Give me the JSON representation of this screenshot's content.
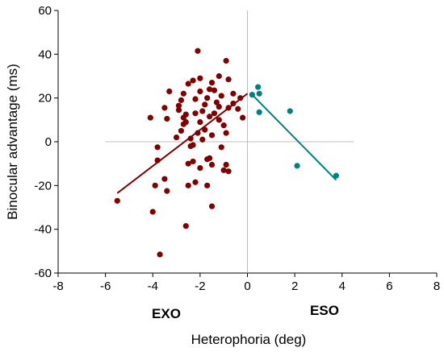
{
  "chart_data": {
    "type": "scatter",
    "title": "",
    "xlabel": "Heterophoria (deg)",
    "ylabel": "Binocular advantage (ms)",
    "xlim": [
      -8,
      8
    ],
    "ylim": [
      -60,
      60
    ],
    "x_ticks": [
      "-8",
      "-6",
      "-4",
      "-2",
      "0",
      "2",
      "4",
      "6",
      "8"
    ],
    "y_ticks": [
      "60",
      "40",
      "20",
      "0",
      "-20",
      "-40",
      "-60"
    ],
    "annotations": {
      "left": "EXO",
      "right": "ESO"
    },
    "colors": {
      "exo": "#800000",
      "eso": "#008080",
      "reference_line": "#bfbfbf"
    },
    "series": [
      {
        "points": [
          [
            -3.7,
            -51.5
          ],
          [
            -2.1,
            41.5
          ],
          [
            -1.5,
            -29.5
          ],
          [
            -2.6,
            -38.5
          ],
          [
            -4.0,
            -32.0
          ],
          [
            -5.5,
            -27.0
          ],
          [
            -3.4,
            -22.5
          ],
          [
            -3.9,
            -20.0
          ],
          [
            -3.5,
            -17.0
          ],
          [
            -3.8,
            -8.5
          ],
          [
            -3.8,
            -2.5
          ],
          [
            -4.1,
            11.0
          ],
          [
            -3.5,
            15.5
          ],
          [
            -3.4,
            10.5
          ],
          [
            -3.3,
            23.0
          ],
          [
            -2.5,
            26.5
          ],
          [
            -2.7,
            22.0
          ],
          [
            -2.9,
            16.5
          ],
          [
            -2.6,
            12.5
          ],
          [
            -2.7,
            8.0
          ],
          [
            -2.8,
            5.0
          ],
          [
            -2.4,
            1.5
          ],
          [
            -2.3,
            -1.5
          ],
          [
            -2.1,
            4.0
          ],
          [
            -2.0,
            9.0
          ],
          [
            -1.9,
            14.0
          ],
          [
            -1.8,
            17.0
          ],
          [
            -1.7,
            20.0
          ],
          [
            -1.6,
            24.0
          ],
          [
            -1.5,
            27.0
          ],
          [
            -2.0,
            29.0
          ],
          [
            -1.2,
            30.0
          ],
          [
            -0.9,
            37.0
          ],
          [
            -0.8,
            28.5
          ],
          [
            -1.4,
            13.0
          ],
          [
            -1.2,
            10.0
          ],
          [
            -1.0,
            7.5
          ],
          [
            -0.9,
            4.0
          ],
          [
            -0.8,
            15.5
          ],
          [
            -0.6,
            22.0
          ],
          [
            -0.3,
            20.0
          ],
          [
            -0.2,
            11.0
          ],
          [
            -0.4,
            15.0
          ],
          [
            -0.6,
            17.5
          ],
          [
            -1.1,
            21.0
          ],
          [
            -1.3,
            18.0
          ],
          [
            -1.8,
            5.5
          ],
          [
            -2.2,
            13.0
          ],
          [
            -2.6,
            9.0
          ],
          [
            -2.9,
            14.5
          ],
          [
            -2.3,
            -9.0
          ],
          [
            -2.5,
            -10.0
          ],
          [
            -2.0,
            -12.0
          ],
          [
            -2.5,
            -20.0
          ],
          [
            -2.2,
            -18.5
          ],
          [
            -1.7,
            -20.0
          ],
          [
            -1.7,
            -8.0
          ],
          [
            -1.6,
            -7.5
          ],
          [
            -1.5,
            -10.5
          ],
          [
            -1.1,
            -2.5
          ],
          [
            -0.9,
            -10.5
          ],
          [
            -0.8,
            -13.5
          ],
          [
            -1.0,
            -13.0
          ],
          [
            -2.4,
            -2.0
          ],
          [
            -1.9,
            1.0
          ],
          [
            -1.5,
            3.0
          ],
          [
            -3.0,
            2.0
          ],
          [
            -2.8,
            19.0
          ],
          [
            -2.2,
            19.5
          ],
          [
            -2.0,
            23.0
          ],
          [
            -1.4,
            23.5
          ],
          [
            -1.2,
            16.0
          ],
          [
            -2.7,
            11.0
          ],
          [
            -1.6,
            11.5
          ],
          [
            -2.3,
            28.0
          ]
        ]
      },
      {
        "points": [
          [
            0.2,
            21.5
          ],
          [
            0.45,
            25.0
          ],
          [
            0.5,
            22.0
          ],
          [
            0.5,
            13.5
          ],
          [
            1.8,
            14.0
          ],
          [
            2.1,
            -11.0
          ],
          [
            3.75,
            -15.5
          ]
        ]
      }
    ],
    "trendlines": [
      {
        "from": [
          -5.5,
          -23.5
        ],
        "to": [
          0.0,
          22.0
        ]
      },
      {
        "from": [
          0.2,
          21.5
        ],
        "to": [
          3.75,
          -17.5
        ]
      }
    ]
  }
}
